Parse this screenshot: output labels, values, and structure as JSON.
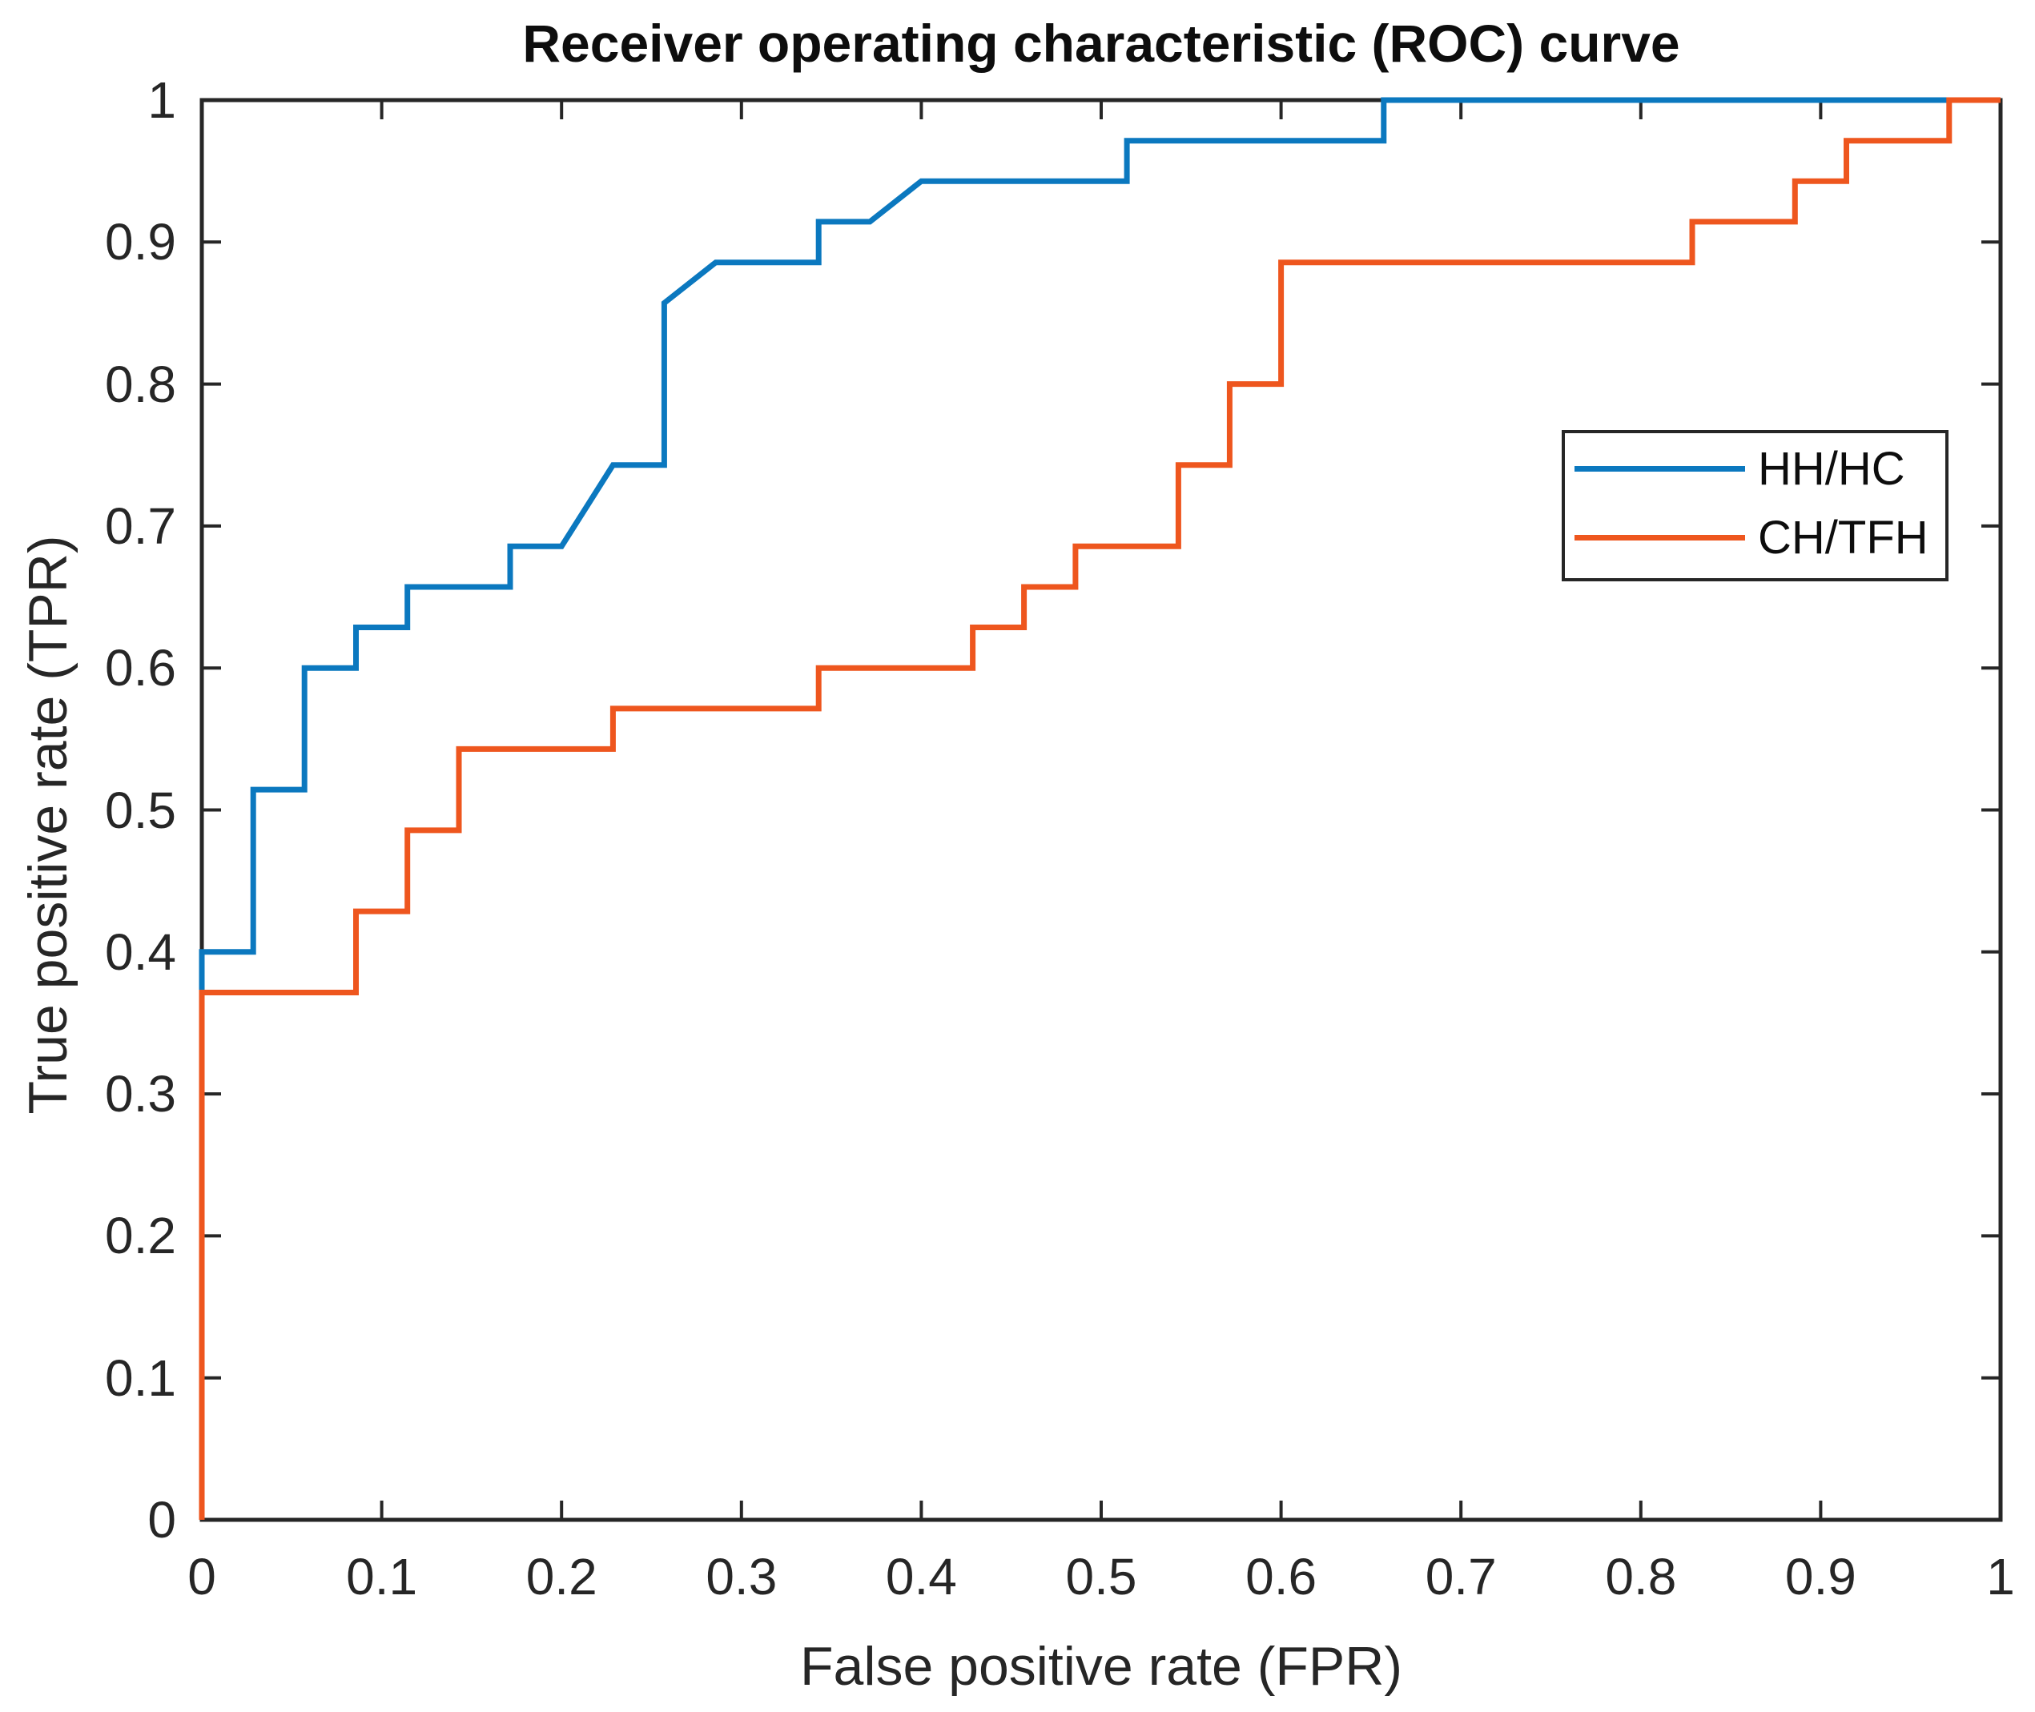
{
  "chart_data": {
    "type": "line",
    "subtype": "roc-step-curves",
    "title": "Receiver operating characteristic (ROC) curve",
    "xlabel": "False positive rate (FPR)",
    "ylabel": "True positive rate (TPR)",
    "xlim": [
      0,
      1
    ],
    "ylim": [
      0,
      1
    ],
    "grid": false,
    "box": true,
    "tick_direction": "in",
    "legend_position": "upper-right-inside",
    "x_ticks": {
      "values": [
        0,
        0.1,
        0.2,
        0.3,
        0.4,
        0.5,
        0.6,
        0.7,
        0.8,
        0.9,
        1
      ],
      "labels": [
        "0",
        "0.1",
        "0.2",
        "0.3",
        "0.4",
        "0.5",
        "0.6",
        "0.7",
        "0.8",
        "0.9",
        "1"
      ]
    },
    "y_ticks": {
      "values": [
        0,
        0.1,
        0.2,
        0.3,
        0.4,
        0.5,
        0.6,
        0.7,
        0.8,
        0.9,
        1
      ],
      "labels": [
        "0",
        "0.1",
        "0.2",
        "0.3",
        "0.4",
        "0.5",
        "0.6",
        "0.7",
        "0.8",
        "0.9",
        "1"
      ]
    },
    "series": [
      {
        "name": "HH/HC",
        "color": "#0B78BF",
        "points": [
          [
            0,
            0
          ],
          [
            0,
            0.4
          ],
          [
            0.0286,
            0.4
          ],
          [
            0.0286,
            0.5143
          ],
          [
            0.0571,
            0.5143
          ],
          [
            0.0571,
            0.6
          ],
          [
            0.0857,
            0.6
          ],
          [
            0.0857,
            0.6286
          ],
          [
            0.1143,
            0.6286
          ],
          [
            0.1143,
            0.6571
          ],
          [
            0.1714,
            0.6571
          ],
          [
            0.1714,
            0.6857
          ],
          [
            0.2,
            0.6857
          ],
          [
            0.2286,
            0.7429
          ],
          [
            0.2571,
            0.7429
          ],
          [
            0.2571,
            0.8571
          ],
          [
            0.2857,
            0.8857
          ],
          [
            0.3429,
            0.8857
          ],
          [
            0.3429,
            0.9143
          ],
          [
            0.3714,
            0.9143
          ],
          [
            0.4,
            0.9429
          ],
          [
            0.5143,
            0.9429
          ],
          [
            0.5143,
            0.9714
          ],
          [
            0.6571,
            0.9714
          ],
          [
            0.6571,
            1
          ],
          [
            1,
            1
          ]
        ]
      },
      {
        "name": "CH/TFH",
        "color": "#EE561E",
        "points": [
          [
            0,
            0
          ],
          [
            0,
            0.3714
          ],
          [
            0.0857,
            0.3714
          ],
          [
            0.0857,
            0.4286
          ],
          [
            0.1143,
            0.4286
          ],
          [
            0.1143,
            0.4857
          ],
          [
            0.1429,
            0.4857
          ],
          [
            0.1429,
            0.5429
          ],
          [
            0.2286,
            0.5429
          ],
          [
            0.2286,
            0.5714
          ],
          [
            0.3429,
            0.5714
          ],
          [
            0.3429,
            0.6
          ],
          [
            0.4286,
            0.6
          ],
          [
            0.4286,
            0.6286
          ],
          [
            0.4571,
            0.6286
          ],
          [
            0.4571,
            0.6571
          ],
          [
            0.4857,
            0.6571
          ],
          [
            0.4857,
            0.6857
          ],
          [
            0.5429,
            0.6857
          ],
          [
            0.5429,
            0.7429
          ],
          [
            0.5714,
            0.7429
          ],
          [
            0.5714,
            0.8
          ],
          [
            0.6,
            0.8
          ],
          [
            0.6,
            0.8857
          ],
          [
            0.8286,
            0.8857
          ],
          [
            0.8286,
            0.9143
          ],
          [
            0.8857,
            0.9143
          ],
          [
            0.8857,
            0.9429
          ],
          [
            0.9143,
            0.9429
          ],
          [
            0.9143,
            0.9714
          ],
          [
            0.9714,
            0.9714
          ],
          [
            0.9714,
            1
          ],
          [
            1,
            1
          ]
        ]
      }
    ],
    "colors": {
      "axis": "#262626",
      "tick_text": "#262626",
      "title_text": "#0d0d0d",
      "background": "#ffffff"
    }
  }
}
